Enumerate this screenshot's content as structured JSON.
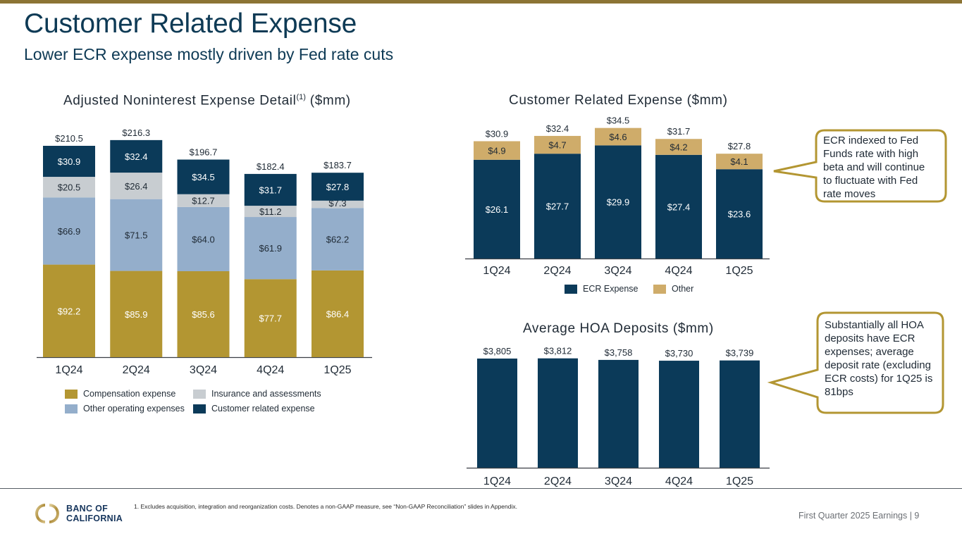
{
  "header": {
    "title": "Customer Related Expense",
    "subtitle": "Lower ECR expense mostly driven by Fed rate cuts"
  },
  "colors": {
    "brand_gold": "#8c7434",
    "navy": "#0b3a59",
    "compensation": "#b39632",
    "other_operating": "#94aecb",
    "insurance": "#c8cdd1",
    "customer_related": "#0b3a59",
    "other_gold_light": "#cfac6a"
  },
  "chart_data": [
    {
      "id": "noninterest",
      "type": "bar",
      "stacked": true,
      "title": "Adjusted Noninterest Expense Detail",
      "title_sup": "(1)",
      "title_suffix": " ($mm)",
      "categories": [
        "1Q24",
        "2Q24",
        "3Q24",
        "4Q24",
        "1Q25"
      ],
      "series": [
        {
          "name": "Compensation expense",
          "values": [
            92.2,
            85.9,
            85.6,
            77.7,
            86.4
          ],
          "labels": [
            "$92.2",
            "$85.9",
            "$85.6",
            "$77.7",
            "$86.4"
          ],
          "color": "#b39632",
          "label_color": "#ffffff"
        },
        {
          "name": "Other operating expenses",
          "values": [
            66.9,
            71.5,
            64.0,
            61.9,
            62.2
          ],
          "labels": [
            "$66.9",
            "$71.5",
            "$64.0",
            "$61.9",
            "$62.2"
          ],
          "color": "#94aecb",
          "label_color": "#1f2a35"
        },
        {
          "name": "Insurance and assessments",
          "values": [
            20.5,
            26.4,
            12.7,
            11.2,
            7.3
          ],
          "labels": [
            "$20.5",
            "$26.4",
            "$12.7",
            "$11.2",
            "$7.3"
          ],
          "color": "#c8cdd1",
          "label_color": "#1f2a35"
        },
        {
          "name": "Customer related expense",
          "values": [
            30.9,
            32.4,
            34.5,
            31.7,
            27.8
          ],
          "labels": [
            "$30.9",
            "$32.4",
            "$34.5",
            "$31.7",
            "$27.8"
          ],
          "color": "#0b3a59",
          "label_color": "#ffffff"
        }
      ],
      "totals": [
        210.5,
        216.3,
        196.7,
        182.4,
        183.7
      ],
      "total_labels": [
        "$210.5",
        "$216.3",
        "$196.7",
        "$182.4",
        "$183.7"
      ],
      "legend": [
        {
          "name": "Compensation expense",
          "color": "#b39632"
        },
        {
          "name": "Insurance and assessments",
          "color": "#c8cdd1"
        },
        {
          "name": "Other operating expenses",
          "color": "#94aecb"
        },
        {
          "name": "Customer related expense",
          "color": "#0b3a59"
        }
      ],
      "legend_position": "bottom",
      "grid": false,
      "ylim": [
        0,
        216.3
      ]
    },
    {
      "id": "customer_related",
      "type": "bar",
      "stacked": true,
      "title": "Customer Related Expense ($mm)",
      "categories": [
        "1Q24",
        "2Q24",
        "3Q24",
        "4Q24",
        "1Q25"
      ],
      "series": [
        {
          "name": "ECR Expense",
          "values": [
            26.1,
            27.7,
            29.9,
            27.4,
            23.6
          ],
          "labels": [
            "$26.1",
            "$27.7",
            "$29.9",
            "$27.4",
            "$23.6"
          ],
          "color": "#0b3a59",
          "label_color": "#ffffff"
        },
        {
          "name": "Other",
          "values": [
            4.9,
            4.7,
            4.6,
            4.2,
            4.1
          ],
          "labels": [
            "$4.9",
            "$4.7",
            "$4.6",
            "$4.2",
            "$4.1"
          ],
          "color": "#cfac6a",
          "label_color": "#1f2a35"
        }
      ],
      "totals": [
        30.9,
        32.4,
        34.5,
        31.7,
        27.8
      ],
      "total_labels": [
        "$30.9",
        "$32.4",
        "$34.5",
        "$31.7",
        "$27.8"
      ],
      "legend": [
        {
          "name": "ECR Expense",
          "color": "#0b3a59"
        },
        {
          "name": "Other",
          "color": "#cfac6a"
        }
      ],
      "legend_position": "bottom",
      "grid": false,
      "ylim": [
        0,
        34.5
      ]
    },
    {
      "id": "hoa",
      "type": "bar",
      "title": "Average HOA Deposits ($mm)",
      "categories": [
        "1Q24",
        "2Q24",
        "3Q24",
        "4Q24",
        "1Q25"
      ],
      "values": [
        3805,
        3812,
        3758,
        3730,
        3739
      ],
      "value_labels": [
        "$3,805",
        "$3,812",
        "$3,758",
        "$3,730",
        "$3,739"
      ],
      "color": "#0b3a59",
      "grid": false,
      "ylim": [
        0,
        3812
      ]
    }
  ],
  "callouts": {
    "ecr": "ECR indexed to Fed Funds rate with high beta and will continue to fluctuate with Fed rate moves",
    "hoa": "Substantially all HOA deposits have ECR expenses; average deposit rate (excluding ECR costs) for 1Q25 is 81bps"
  },
  "footer": {
    "footnote": "1.  Excludes acquisition, integration and reorganization costs. Denotes a non-GAAP measure, see “Non-GAAP Reconciliation” slides in Appendix.",
    "page_label": "First Quarter 2025 Earnings |  9",
    "logo_line1": "BANC OF",
    "logo_line2": "CALIFORNIA"
  }
}
